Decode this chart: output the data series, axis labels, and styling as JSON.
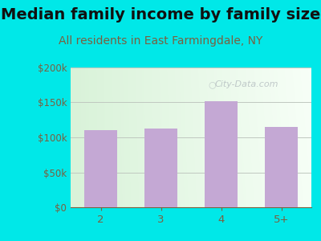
{
  "categories": [
    "2",
    "3",
    "4",
    "5+"
  ],
  "values": [
    110000,
    113000,
    152000,
    115000
  ],
  "bar_color": "#c4a8d4",
  "title": "Median family income by family size",
  "subtitle": "All residents in East Farmingdale, NY",
  "ylim": [
    0,
    200000
  ],
  "yticks": [
    0,
    50000,
    100000,
    150000,
    200000
  ],
  "ytick_labels": [
    "$0",
    "$50k",
    "$100k",
    "$150k",
    "$200k"
  ],
  "title_fontsize": 14,
  "subtitle_fontsize": 10,
  "title_color": "#111111",
  "subtitle_color": "#7a6040",
  "outer_bg": "#00e8e8",
  "watermark": "City-Data.com",
  "tick_label_color": "#7a6040",
  "grid_color": "#c0c8c0",
  "chart_bg_left": "#d4edd4",
  "chart_bg_right": "#f8fdf8"
}
